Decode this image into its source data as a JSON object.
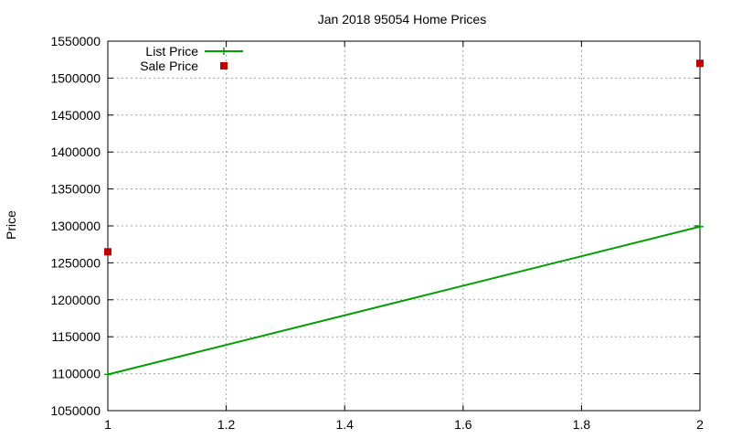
{
  "chart_data": {
    "type": "line",
    "title": "Jan 2018 95054 Home Prices",
    "xlabel": "",
    "ylabel": "Price",
    "xlim": [
      1,
      2
    ],
    "ylim": [
      1050000,
      1550000
    ],
    "xticks": [
      1,
      1.2,
      1.4,
      1.6,
      1.8,
      2
    ],
    "xtick_labels": [
      "1",
      "1.2",
      "1.4",
      "1.6",
      "1.8",
      "2"
    ],
    "yticks": [
      1050000,
      1100000,
      1150000,
      1200000,
      1250000,
      1300000,
      1350000,
      1400000,
      1450000,
      1500000,
      1550000
    ],
    "ytick_labels": [
      "1050000",
      "1100000",
      "1150000",
      "1200000",
      "1250000",
      "1300000",
      "1350000",
      "1400000",
      "1450000",
      "1500000",
      "1550000"
    ],
    "grid": true,
    "legend_position": "top-left",
    "series": [
      {
        "name": "List Price",
        "style": "line-with-plus-markers",
        "color": "#00a000",
        "x": [
          1,
          2
        ],
        "y": [
          1099000,
          1299000
        ]
      },
      {
        "name": "Sale Price",
        "style": "square-markers",
        "color": "#c00000",
        "x": [
          1,
          2
        ],
        "y": [
          1265000,
          1520000
        ]
      }
    ]
  }
}
